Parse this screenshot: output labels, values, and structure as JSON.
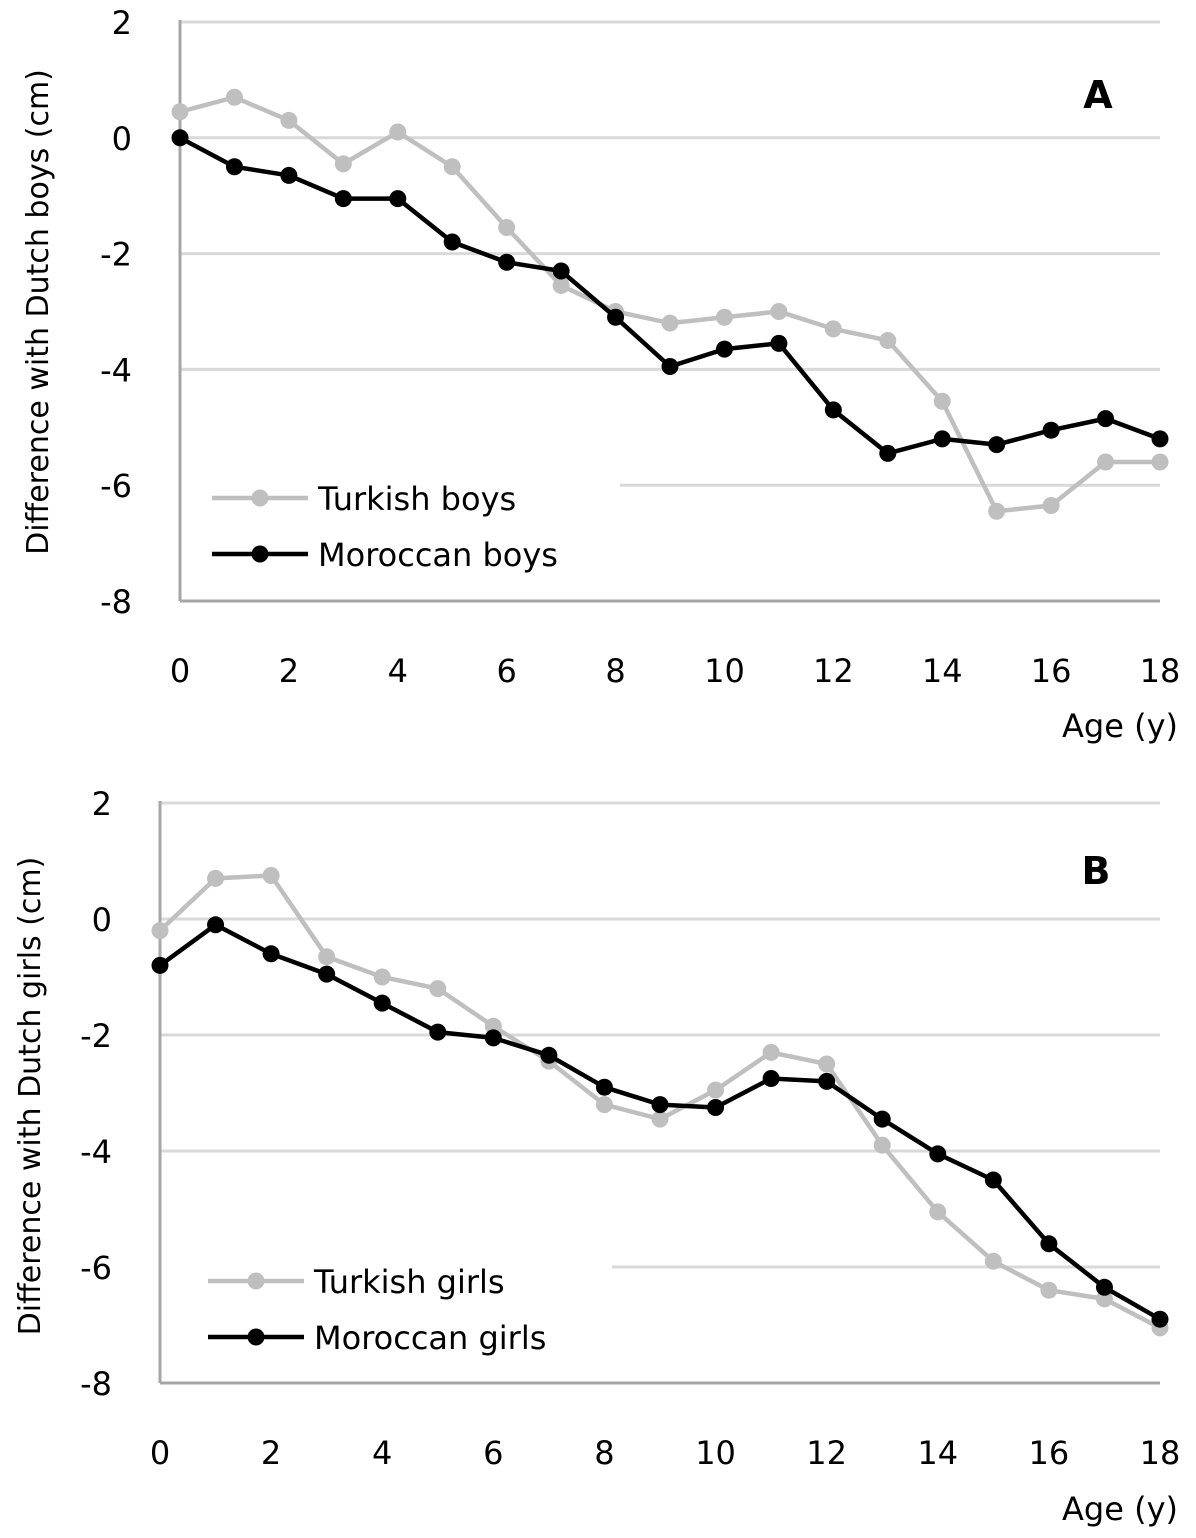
{
  "chart_data": [
    {
      "type": "line",
      "panel_label": "A",
      "xlabel": "Age (y)",
      "ylabel": "Difference with Dutch boys (cm)",
      "xlim": [
        0,
        18
      ],
      "ylim": [
        -8,
        2
      ],
      "x_ticks": [
        "0",
        "2",
        "4",
        "6",
        "8",
        "10",
        "12",
        "14",
        "16",
        "18"
      ],
      "y_ticks": [
        "2",
        "0",
        "-2",
        "-4",
        "-6",
        "-8"
      ],
      "grid": "horizontal",
      "legend_position": "bottom-left",
      "x": [
        0,
        1,
        2,
        3,
        4,
        5,
        6,
        7,
        8,
        9,
        10,
        11,
        12,
        13,
        14,
        15,
        16,
        17,
        18
      ],
      "series": [
        {
          "name": "Turkish boys",
          "color": "#bfbfbf",
          "values": [
            0.45,
            0.7,
            0.3,
            -0.45,
            0.1,
            -0.5,
            -1.55,
            -2.55,
            -3.0,
            -3.2,
            -3.1,
            -3.0,
            -3.3,
            -3.5,
            -4.55,
            -6.45,
            -6.35,
            -5.6,
            -5.6
          ]
        },
        {
          "name": "Moroccan boys",
          "color": "#000000",
          "values": [
            0.0,
            -0.5,
            -0.65,
            -1.05,
            -1.05,
            -1.8,
            -2.15,
            -2.3,
            -3.1,
            -3.95,
            -3.65,
            -3.55,
            -4.7,
            -5.45,
            -5.2,
            -5.3,
            -5.05,
            -4.85,
            -5.2
          ]
        }
      ]
    },
    {
      "type": "line",
      "panel_label": "B",
      "xlabel": "Age (y)",
      "ylabel": "Difference with Dutch girls (cm)",
      "xlim": [
        0,
        18
      ],
      "ylim": [
        -8,
        2
      ],
      "x_ticks": [
        "0",
        "2",
        "4",
        "6",
        "8",
        "10",
        "12",
        "14",
        "16",
        "18"
      ],
      "y_ticks": [
        "2",
        "0",
        "-2",
        "-4",
        "-6",
        "-8"
      ],
      "grid": "horizontal",
      "legend_position": "bottom-left",
      "x": [
        0,
        1,
        2,
        3,
        4,
        5,
        6,
        7,
        8,
        9,
        10,
        11,
        12,
        13,
        14,
        15,
        16,
        17,
        18
      ],
      "series": [
        {
          "name": "Turkish girls",
          "color": "#bfbfbf",
          "values": [
            -0.2,
            0.7,
            0.75,
            -0.65,
            -1.0,
            -1.2,
            -1.85,
            -2.45,
            -3.2,
            -3.45,
            -2.95,
            -2.3,
            -2.5,
            -3.9,
            -5.05,
            -5.9,
            -6.4,
            -6.55,
            -7.05
          ]
        },
        {
          "name": "Moroccan girls",
          "color": "#000000",
          "values": [
            -0.8,
            -0.1,
            -0.6,
            -0.95,
            -1.45,
            -1.95,
            -2.05,
            -2.35,
            -2.9,
            -3.2,
            -3.25,
            -2.75,
            -2.8,
            -3.45,
            -4.05,
            -4.5,
            -5.6,
            -6.35,
            -6.9
          ]
        }
      ]
    }
  ]
}
